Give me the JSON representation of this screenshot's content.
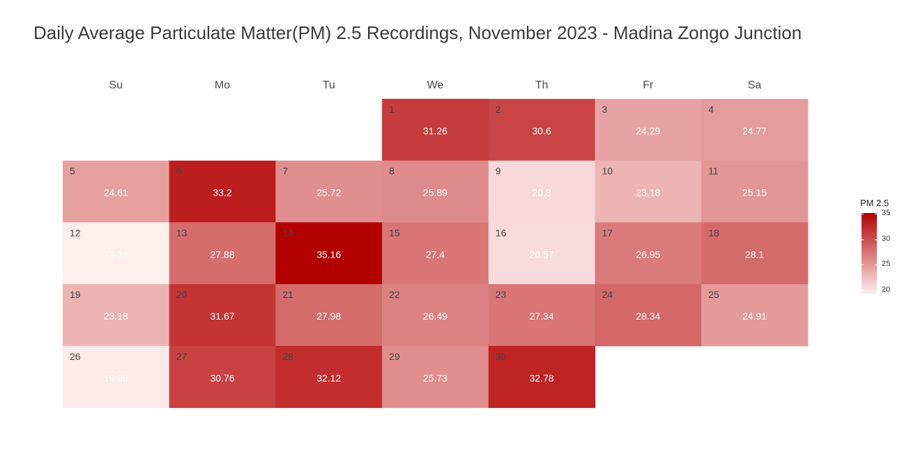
{
  "chart_data": {
    "type": "heatmap",
    "title": "Daily Average Particulate Matter(PM) 2.5 Recordings, November 2023 - Madina Zongo Junction",
    "weekdays": [
      "Su",
      "Mo",
      "Tu",
      "We",
      "Th",
      "Fr",
      "Sa"
    ],
    "first_weekday_index": 3,
    "days": [
      1,
      2,
      3,
      4,
      5,
      6,
      7,
      8,
      9,
      10,
      11,
      12,
      13,
      14,
      15,
      16,
      17,
      18,
      19,
      20,
      21,
      22,
      23,
      24,
      25,
      26,
      27,
      28,
      29,
      30
    ],
    "values": [
      31.26,
      30.6,
      24.29,
      24.77,
      24.61,
      33.2,
      25.72,
      25.89,
      20.8,
      23.18,
      25.15,
      19.33,
      27.88,
      35.16,
      27.4,
      20.57,
      26.95,
      28.1,
      23.18,
      31.67,
      27.98,
      26.49,
      27.34,
      28.34,
      24.91,
      19.69,
      30.76,
      32.12,
      25.73,
      32.78
    ],
    "legend": {
      "title": "PM 2.5",
      "ticks": [
        20,
        25,
        30,
        35
      ],
      "range": [
        19.33,
        35.16
      ],
      "low_color": "#ffeeee",
      "high_color": "#b30000"
    }
  }
}
